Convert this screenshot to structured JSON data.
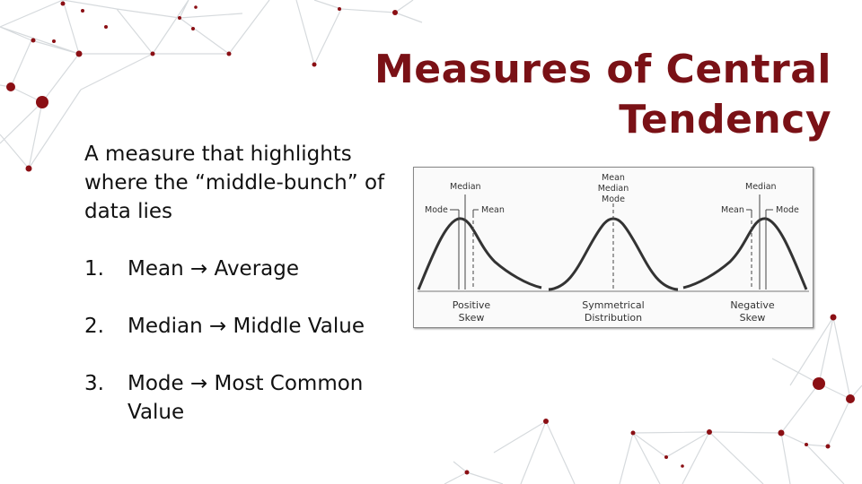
{
  "slide": {
    "title_line1": "Measures of Central",
    "title_line2": "Tendency",
    "intro": "A measure that highlights where the “middle-bunch” of data lies",
    "items": [
      {
        "number": "1.",
        "text": "Mean → Average"
      },
      {
        "number": "2.",
        "text": "Median → Middle Value"
      },
      {
        "number": "3.",
        "text": "Mode → Most Common Value"
      }
    ]
  },
  "figure": {
    "positive": {
      "mode": "Mode",
      "median": "Median",
      "mean": "Mean",
      "caption1": "Positive",
      "caption2": "Skew"
    },
    "symmetric": {
      "mean": "Mean",
      "median": "Median",
      "mode": "Mode",
      "caption1": "Symmetrical",
      "caption2": "Distribution"
    },
    "negative": {
      "median": "Median",
      "mean": "Mean",
      "mode": "Mode",
      "caption1": "Negative",
      "caption2": "Skew"
    }
  },
  "colors": {
    "title": "#7a1116",
    "accent_dots": "#8b0f14",
    "network_lines": "#d5d9dc"
  }
}
